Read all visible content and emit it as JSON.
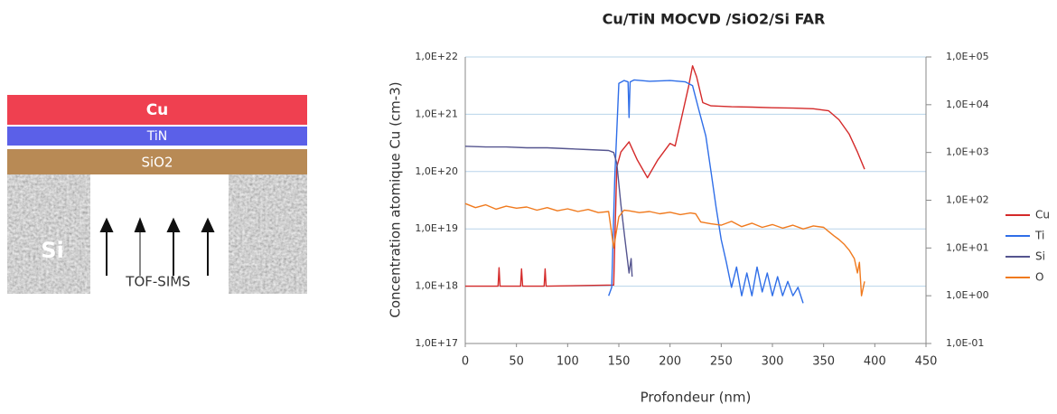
{
  "diagram": {
    "layers": [
      "Cu",
      "TiN",
      "SiO2",
      "Si"
    ],
    "label": "TOF-SIMS"
  },
  "chart_data": {
    "type": "line",
    "title": "Cu/TiN MOCVD /SiO2/Si FAR",
    "xlabel": "Profondeur (nm)",
    "ylabel": "Concentration atomique Cu (cm-3)",
    "xlim": [
      0,
      450
    ],
    "xticks": [
      0,
      50,
      100,
      150,
      200,
      250,
      300,
      350,
      400,
      450
    ],
    "ylim": [
      1e+17,
      1e+22
    ],
    "log": true,
    "grid": true,
    "yticks": [
      {
        "value": 1e+17,
        "label": "1,0E+17"
      },
      {
        "value": 1e+18,
        "label": "1,0E+18"
      },
      {
        "value": 1e+19,
        "label": "1,0E+19"
      },
      {
        "value": 1e+20,
        "label": "1,0E+20"
      },
      {
        "value": 1e+21,
        "label": "1,0E+21"
      },
      {
        "value": 1e+22,
        "label": "1,0E+22"
      }
    ],
    "y2lim": [
      0.1,
      100000
    ],
    "y2ticks": [
      {
        "value": 0.1,
        "label": "1,0E-01"
      },
      {
        "value": 1,
        "label": "1,0E+00"
      },
      {
        "value": 10,
        "label": "1,0E+01"
      },
      {
        "value": 100,
        "label": "1,0E+02"
      },
      {
        "value": 1000,
        "label": "1,0E+03"
      },
      {
        "value": 10000,
        "label": "1,0E+04"
      },
      {
        "value": 100000,
        "label": "1,0E+05"
      }
    ],
    "legend": "right",
    "series": [
      {
        "name": "Cu",
        "color": "#d42a2a",
        "x": [
          0,
          32,
          33,
          34,
          54,
          55,
          56,
          77,
          78,
          79,
          145,
          148,
          152,
          160,
          168,
          178,
          188,
          200,
          205,
          212,
          218,
          222,
          226,
          232,
          240,
          260,
          280,
          300,
          320,
          340,
          355,
          365,
          375,
          383,
          390
        ],
        "values": [
          1e+18,
          1e+18,
          2.1e+18,
          1e+18,
          1e+18,
          2e+18,
          1e+18,
          1e+18,
          2e+18,
          1e+18,
          1.05e+18,
          1.2e+20,
          2.2e+20,
          3.3e+20,
          1.6e+20,
          7.8e+19,
          1.6e+20,
          3.1e+20,
          2.8e+20,
          1e+21,
          3e+21,
          7e+21,
          4.5e+21,
          1.6e+21,
          1.4e+21,
          1.35e+21,
          1.33e+21,
          1.3e+21,
          1.28e+21,
          1.25e+21,
          1.15e+21,
          8e+20,
          4.5e+20,
          2.2e+20,
          1.1e+20
        ]
      },
      {
        "name": "Ti",
        "color": "#2f6ee8",
        "axis": "y2",
        "x": [
          140,
          143,
          146,
          150,
          155,
          159,
          160,
          161,
          165,
          180,
          200,
          215,
          222,
          228,
          235,
          240,
          245,
          250,
          255,
          260,
          265,
          270,
          275,
          280,
          285,
          290,
          295,
          300,
          305,
          310,
          315,
          320,
          325,
          330
        ],
        "values": [
          1,
          1.5,
          300,
          28000,
          32000,
          30000,
          5400,
          30000,
          33000,
          31000,
          32000,
          30000,
          25000,
          8000,
          2200,
          400,
          70,
          15,
          5,
          1.5,
          4,
          1,
          3,
          1,
          4,
          1.2,
          3,
          1,
          2.5,
          1,
          2,
          1,
          1.5,
          0.7
        ]
      },
      {
        "name": "Si",
        "color": "#55558f",
        "axis": "y2",
        "x": [
          0,
          20,
          40,
          60,
          80,
          100,
          120,
          140,
          145,
          148,
          152,
          156,
          160,
          162,
          163
        ],
        "values": [
          1350,
          1300,
          1300,
          1250,
          1250,
          1200,
          1150,
          1100,
          1000,
          600,
          80,
          15,
          3,
          6,
          2.5
        ]
      },
      {
        "name": "O",
        "color": "#f07a1e",
        "axis": "y2",
        "x": [
          0,
          10,
          20,
          30,
          40,
          50,
          60,
          70,
          80,
          90,
          100,
          110,
          120,
          130,
          140,
          145,
          150,
          155,
          160,
          170,
          180,
          190,
          200,
          210,
          220,
          225,
          230,
          240,
          250,
          260,
          270,
          280,
          290,
          300,
          310,
          320,
          330,
          340,
          350,
          355,
          360,
          365,
          370,
          375,
          380,
          383,
          385,
          387,
          390
        ],
        "values": [
          85,
          70,
          80,
          65,
          75,
          68,
          72,
          62,
          70,
          60,
          66,
          58,
          64,
          55,
          58,
          10,
          45,
          62,
          60,
          55,
          58,
          52,
          56,
          50,
          54,
          52,
          35,
          32,
          30,
          36,
          28,
          33,
          27,
          31,
          26,
          30,
          25,
          29,
          27,
          22,
          18,
          15,
          12,
          9,
          6,
          3,
          5,
          1,
          2
        ]
      }
    ]
  }
}
